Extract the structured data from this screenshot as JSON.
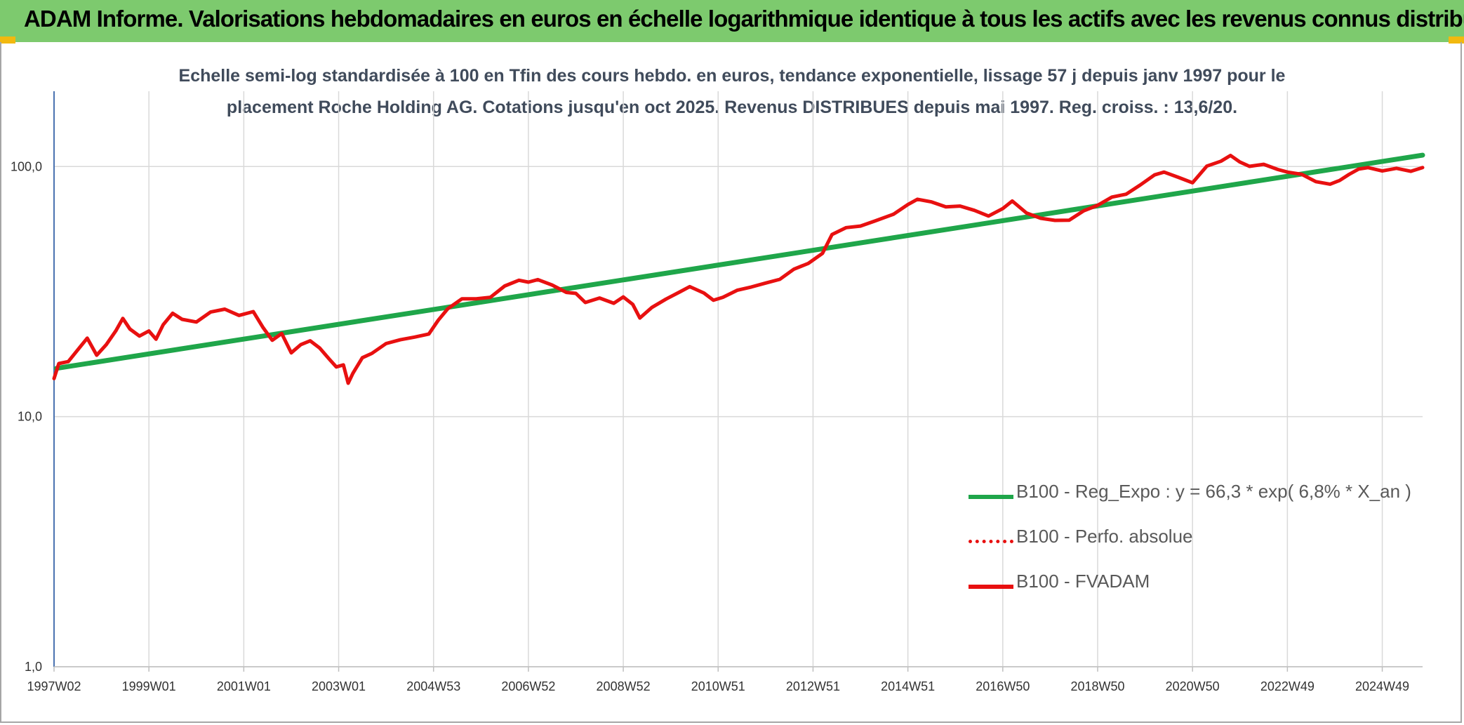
{
  "header": {
    "title": "ADAM Informe. Valorisations hebdomadaires en euros en échelle logarithmique identique à tous les actifs avec les revenus connus distribués"
  },
  "chart_data": {
    "type": "line",
    "title_line1": "Echelle semi-log standardisée à 100 en Tfin des cours hebdo. en euros, tendance exponentielle, lissage 57 j depuis janv 1997 pour le",
    "title_line2": "placement Roche Holding AG. Cotations jusqu'en oct 2025. Revenus DISTRIBUES depuis mai 1997. Reg. croiss. : 13,6/20.",
    "y_scale": "log",
    "ylim": [
      1,
      200
    ],
    "yticks": [
      {
        "value": 1,
        "label": "1,0"
      },
      {
        "value": 10,
        "label": "10,0"
      },
      {
        "value": 100,
        "label": "100,0"
      }
    ],
    "xlim": [
      1997.0,
      2025.85
    ],
    "xticks": [
      {
        "year": 1997.0,
        "label": "1997W02"
      },
      {
        "year": 1999.0,
        "label": "1999W01"
      },
      {
        "year": 2001.0,
        "label": "2001W01"
      },
      {
        "year": 2003.0,
        "label": "2003W01"
      },
      {
        "year": 2005.0,
        "label": "2004W53"
      },
      {
        "year": 2007.0,
        "label": "2006W52"
      },
      {
        "year": 2009.0,
        "label": "2008W52"
      },
      {
        "year": 2011.0,
        "label": "2010W51"
      },
      {
        "year": 2013.0,
        "label": "2012W51"
      },
      {
        "year": 2015.0,
        "label": "2014W51"
      },
      {
        "year": 2017.0,
        "label": "2016W50"
      },
      {
        "year": 2019.0,
        "label": "2018W50"
      },
      {
        "year": 2021.0,
        "label": "2020W50"
      },
      {
        "year": 2023.0,
        "label": "2022W49"
      },
      {
        "year": 2025.0,
        "label": "2024W49"
      }
    ],
    "grid": true,
    "legend_position": "bottom-right",
    "series": [
      {
        "name": "B100 - Reg_Expo : y = 66,3 * exp( 6,8% *  X_an )",
        "color": "#1fa64a",
        "style": "solid",
        "points": [
          [
            1997.05,
            15.6
          ],
          [
            2025.85,
            111
          ]
        ]
      },
      {
        "name": "B100 - Perfo. absolue",
        "color": "#e81010",
        "style": "dotted",
        "points": []
      },
      {
        "name": "B100 - FVADAM",
        "color": "#e81010",
        "style": "solid",
        "points": [
          [
            1997.0,
            14.2
          ],
          [
            1997.1,
            16.3
          ],
          [
            1997.3,
            16.6
          ],
          [
            1997.5,
            18.5
          ],
          [
            1997.7,
            20.6
          ],
          [
            1997.9,
            17.6
          ],
          [
            1998.1,
            19.4
          ],
          [
            1998.3,
            22.0
          ],
          [
            1998.45,
            24.7
          ],
          [
            1998.6,
            22.4
          ],
          [
            1998.8,
            21.0
          ],
          [
            1999.0,
            22.0
          ],
          [
            1999.15,
            20.4
          ],
          [
            1999.3,
            23.3
          ],
          [
            1999.5,
            25.9
          ],
          [
            1999.7,
            24.5
          ],
          [
            2000.0,
            23.9
          ],
          [
            2000.3,
            26.2
          ],
          [
            2000.6,
            26.9
          ],
          [
            2000.9,
            25.4
          ],
          [
            2001.2,
            26.3
          ],
          [
            2001.4,
            22.8
          ],
          [
            2001.6,
            20.2
          ],
          [
            2001.8,
            21.5
          ],
          [
            2002.0,
            18.0
          ],
          [
            2002.2,
            19.4
          ],
          [
            2002.4,
            20.1
          ],
          [
            2002.6,
            18.8
          ],
          [
            2002.8,
            17.0
          ],
          [
            2002.95,
            15.8
          ],
          [
            2003.1,
            16.1
          ],
          [
            2003.2,
            13.6
          ],
          [
            2003.3,
            14.9
          ],
          [
            2003.5,
            17.2
          ],
          [
            2003.7,
            17.9
          ],
          [
            2004.0,
            19.6
          ],
          [
            2004.3,
            20.3
          ],
          [
            2004.6,
            20.8
          ],
          [
            2004.9,
            21.4
          ],
          [
            2005.1,
            24.3
          ],
          [
            2005.3,
            27.0
          ],
          [
            2005.6,
            29.6
          ],
          [
            2005.9,
            29.6
          ],
          [
            2006.2,
            30.0
          ],
          [
            2006.5,
            33.3
          ],
          [
            2006.8,
            35.1
          ],
          [
            2007.0,
            34.5
          ],
          [
            2007.2,
            35.3
          ],
          [
            2007.5,
            33.6
          ],
          [
            2007.8,
            31.4
          ],
          [
            2008.0,
            31.1
          ],
          [
            2008.2,
            28.6
          ],
          [
            2008.5,
            29.8
          ],
          [
            2008.8,
            28.4
          ],
          [
            2009.0,
            30.1
          ],
          [
            2009.2,
            28.1
          ],
          [
            2009.35,
            24.8
          ],
          [
            2009.6,
            27.3
          ],
          [
            2009.9,
            29.5
          ],
          [
            2010.2,
            31.6
          ],
          [
            2010.4,
            33.1
          ],
          [
            2010.7,
            31.2
          ],
          [
            2010.9,
            29.2
          ],
          [
            2011.1,
            30.0
          ],
          [
            2011.4,
            32.0
          ],
          [
            2011.7,
            33.0
          ],
          [
            2012.0,
            34.2
          ],
          [
            2012.3,
            35.4
          ],
          [
            2012.6,
            38.9
          ],
          [
            2012.9,
            41.0
          ],
          [
            2013.2,
            45.0
          ],
          [
            2013.4,
            53.5
          ],
          [
            2013.7,
            57.0
          ],
          [
            2014.0,
            57.8
          ],
          [
            2014.3,
            60.5
          ],
          [
            2014.7,
            64.5
          ],
          [
            2015.0,
            70.5
          ],
          [
            2015.2,
            74.0
          ],
          [
            2015.5,
            72.2
          ],
          [
            2015.8,
            69.0
          ],
          [
            2016.1,
            69.5
          ],
          [
            2016.4,
            66.8
          ],
          [
            2016.7,
            63.4
          ],
          [
            2017.0,
            67.9
          ],
          [
            2017.2,
            72.8
          ],
          [
            2017.5,
            65.2
          ],
          [
            2017.8,
            62.1
          ],
          [
            2018.1,
            60.9
          ],
          [
            2018.4,
            61.0
          ],
          [
            2018.7,
            66.4
          ],
          [
            2019.0,
            70.0
          ],
          [
            2019.3,
            75.5
          ],
          [
            2019.6,
            77.5
          ],
          [
            2019.9,
            84.4
          ],
          [
            2020.2,
            92.6
          ],
          [
            2020.4,
            95.0
          ],
          [
            2020.7,
            90.6
          ],
          [
            2021.0,
            86.1
          ],
          [
            2021.3,
            100.4
          ],
          [
            2021.6,
            105.0
          ],
          [
            2021.8,
            110.7
          ],
          [
            2022.0,
            104.2
          ],
          [
            2022.2,
            100.2
          ],
          [
            2022.5,
            102.1
          ],
          [
            2022.8,
            97.3
          ],
          [
            2023.0,
            95.0
          ],
          [
            2023.3,
            93.1
          ],
          [
            2023.6,
            87.0
          ],
          [
            2023.9,
            85.0
          ],
          [
            2024.1,
            87.9
          ],
          [
            2024.3,
            93.0
          ],
          [
            2024.5,
            97.7
          ],
          [
            2024.7,
            99.0
          ],
          [
            2025.0,
            96.0
          ],
          [
            2025.3,
            98.4
          ],
          [
            2025.6,
            95.7
          ],
          [
            2025.85,
            99.1
          ]
        ]
      }
    ]
  }
}
